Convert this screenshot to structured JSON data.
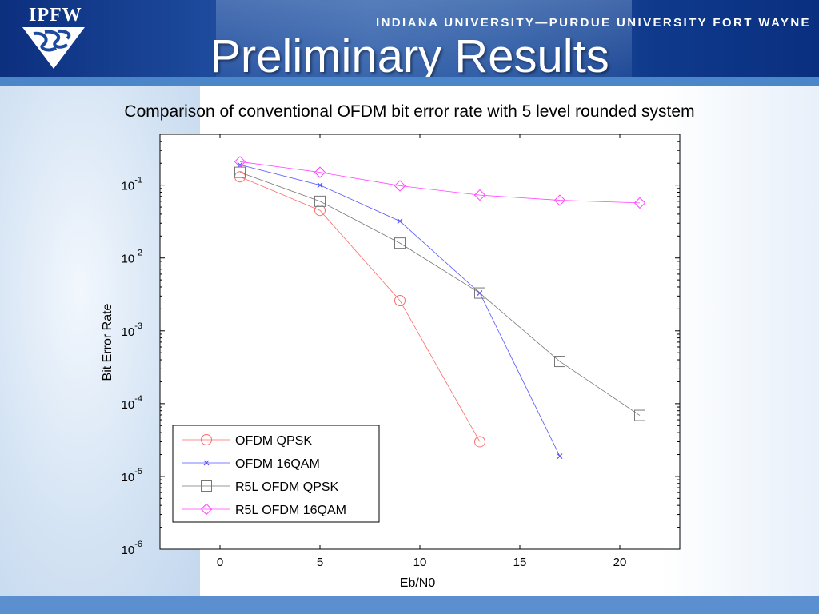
{
  "header": {
    "logo_text": "IPFW",
    "university": "INDIANA UNIVERSITY—PURDUE UNIVERSITY FORT WAYNE",
    "slide_title": "Preliminary Results"
  },
  "colors": {
    "header_blue": "#0c2f7e",
    "stripe_blue": "#4a86c8"
  },
  "chart_data": {
    "type": "line",
    "title": "Comparison of conventional OFDM bit error rate with 5 level rounded system",
    "xlabel": "Eb/N0",
    "ylabel": "Bit Error Rate",
    "xlim": [
      -3,
      23
    ],
    "ylim": [
      1e-06,
      0.5
    ],
    "yscale": "log",
    "xticks": [
      0,
      5,
      10,
      15,
      20
    ],
    "yticks": [
      {
        "value": 0.1,
        "base": "10",
        "exp": "-1"
      },
      {
        "value": 0.01,
        "base": "10",
        "exp": "-2"
      },
      {
        "value": 0.001,
        "base": "10",
        "exp": "-3"
      },
      {
        "value": 0.0001,
        "base": "10",
        "exp": "-4"
      },
      {
        "value": 1e-05,
        "base": "10",
        "exp": "-5"
      },
      {
        "value": 1e-06,
        "base": "10",
        "exp": "-6"
      }
    ],
    "grid": false,
    "legend_position": "bottom-left",
    "series": [
      {
        "name": "OFDM QPSK",
        "marker": "circle",
        "color": "#ff6b6b",
        "x": [
          1,
          5,
          9,
          13
        ],
        "y": [
          0.13,
          0.045,
          0.0026,
          3e-05
        ]
      },
      {
        "name": "OFDM 16QAM",
        "marker": "x",
        "color": "#5555ff",
        "x": [
          1,
          5,
          9,
          13,
          17
        ],
        "y": [
          0.19,
          0.1,
          0.032,
          0.0033,
          1.9e-05
        ]
      },
      {
        "name": "R5L OFDM QPSK",
        "marker": "square",
        "color": "#777777",
        "x": [
          1,
          5,
          9,
          13,
          17,
          21
        ],
        "y": [
          0.15,
          0.06,
          0.016,
          0.0033,
          0.00038,
          6.9e-05
        ]
      },
      {
        "name": "R5L OFDM 16QAM",
        "marker": "diamond",
        "color": "#ff44ff",
        "x": [
          1,
          5,
          9,
          13,
          17,
          21
        ],
        "y": [
          0.21,
          0.15,
          0.098,
          0.073,
          0.062,
          0.057
        ]
      }
    ]
  }
}
